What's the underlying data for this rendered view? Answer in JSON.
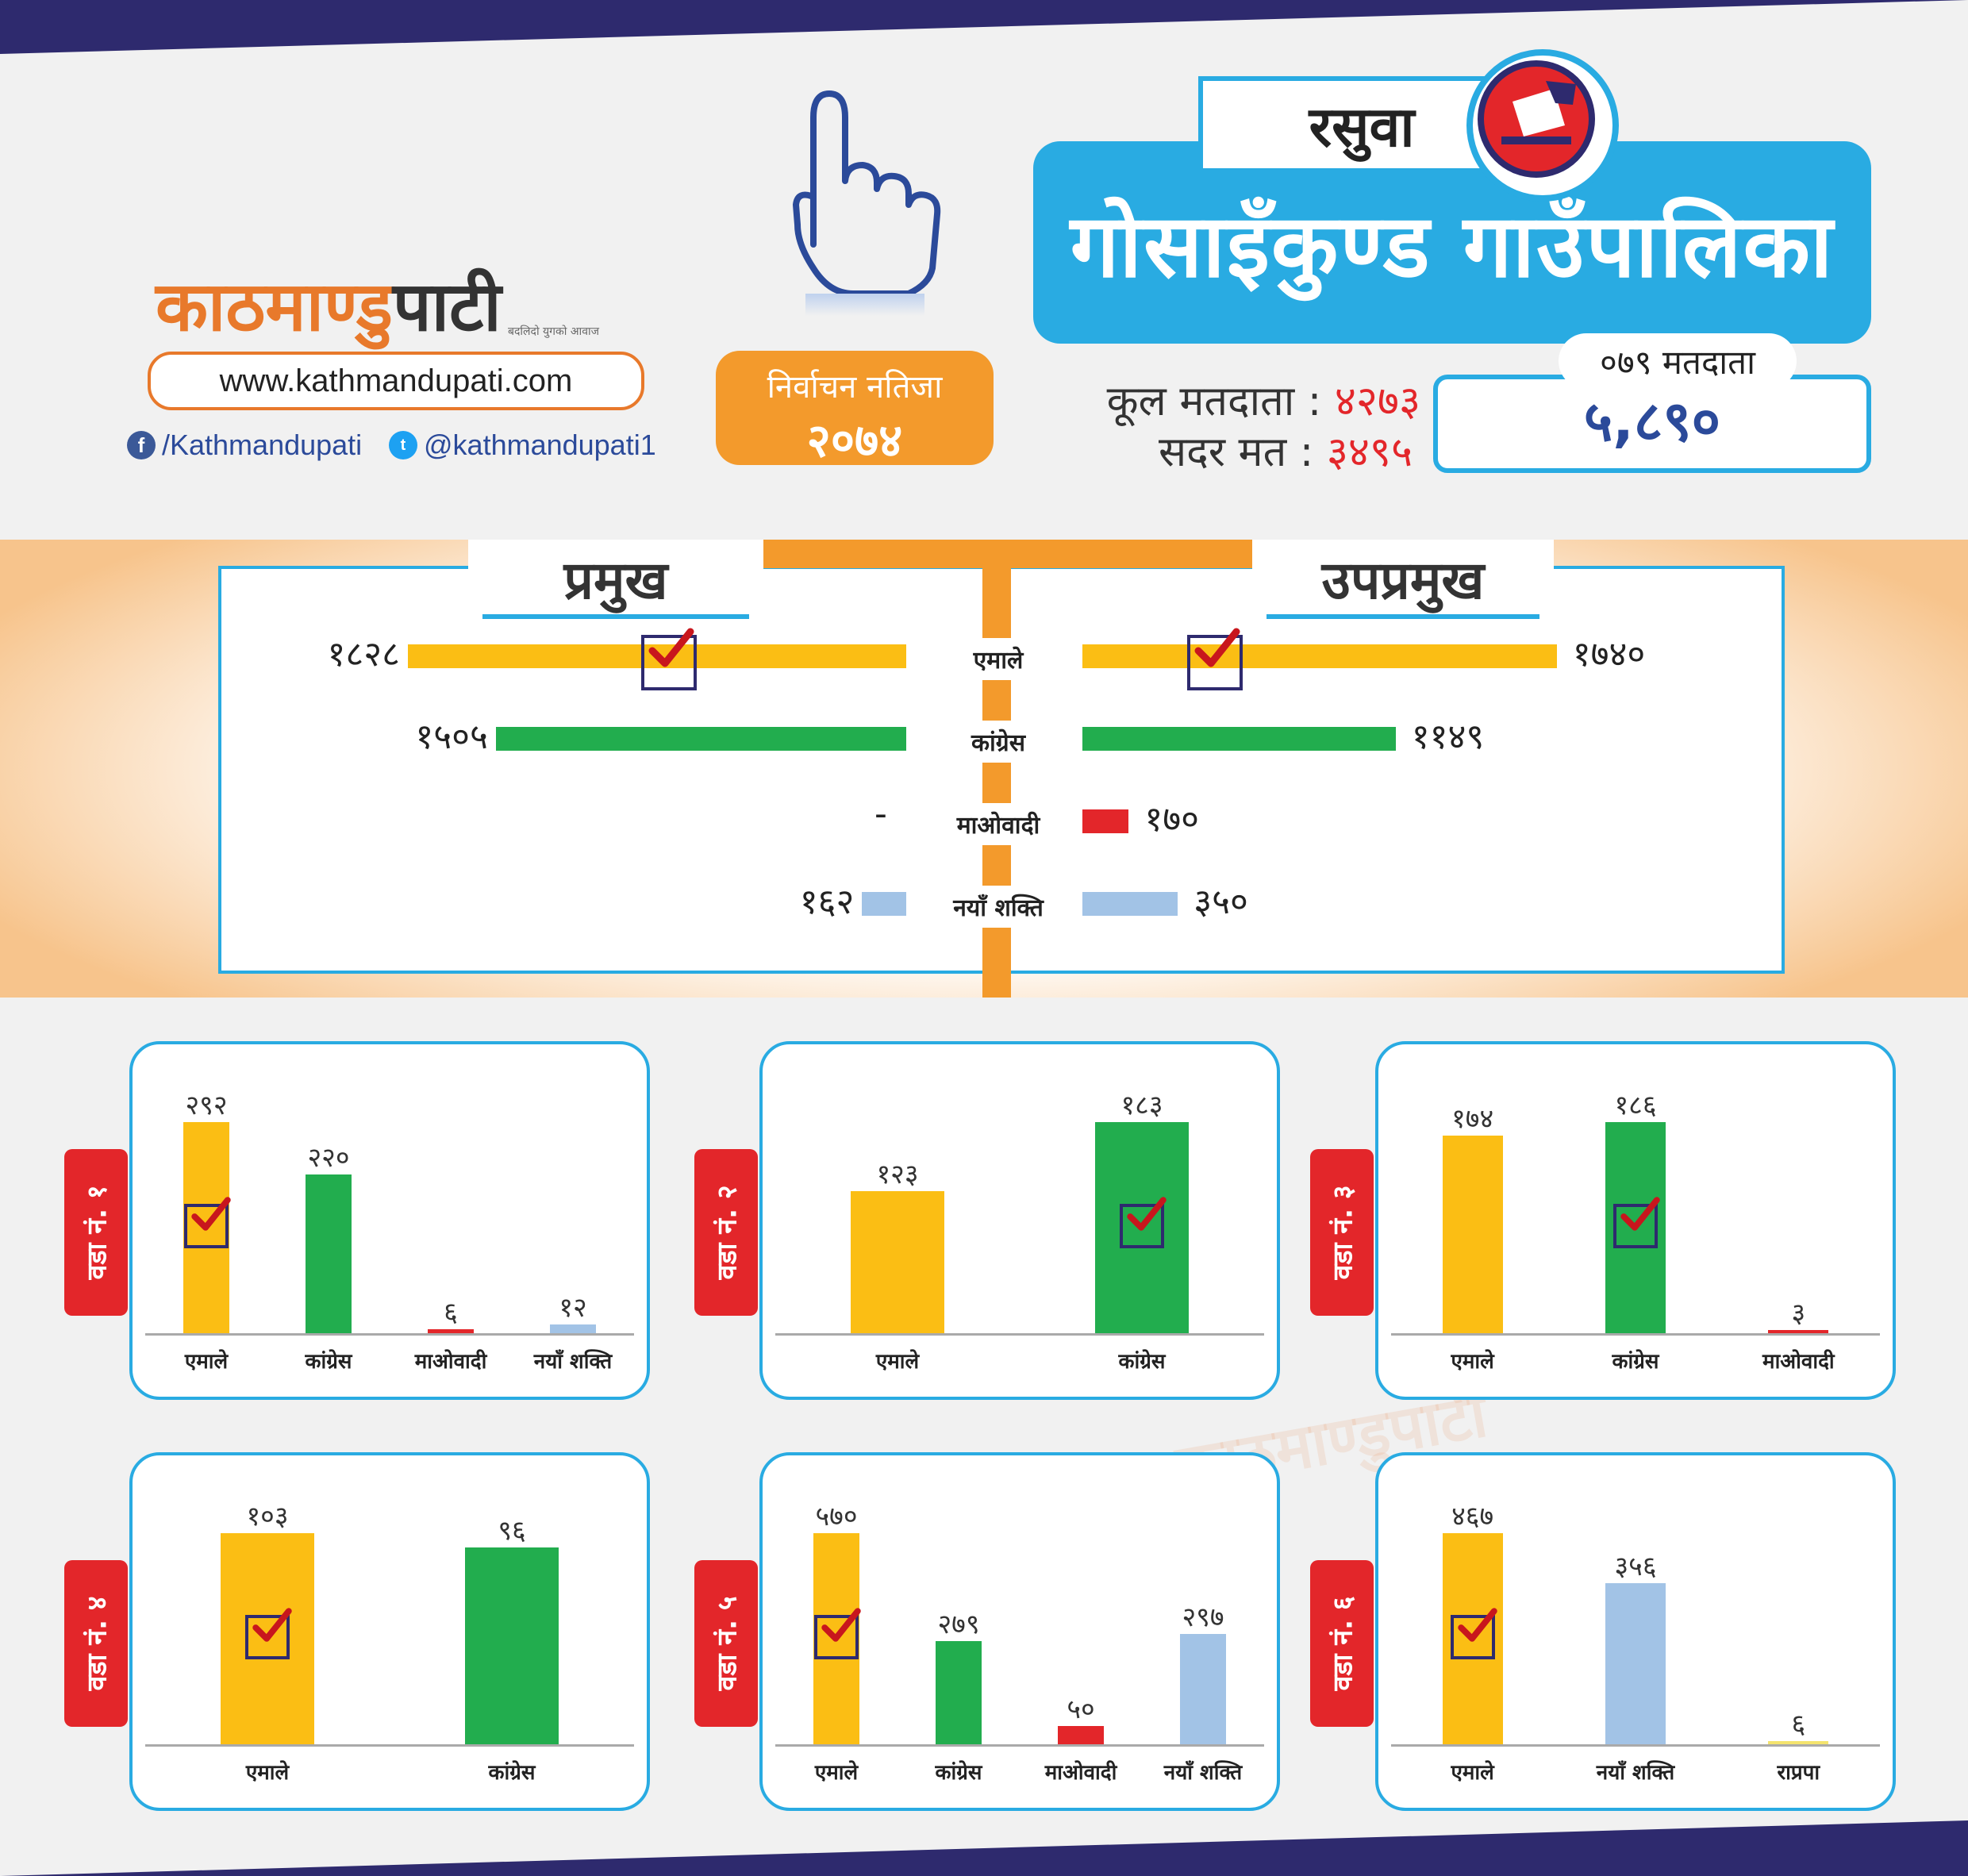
{
  "brand": {
    "logo_main": "काठमाण्डु",
    "logo_dark": "पाटी",
    "tagline": "बदलिदो युगको आवाज",
    "url": "www.kathmandupati.com",
    "facebook": "/Kathmandupati",
    "twitter": "@kathmandupati1",
    "facebook_icon": "facebook-icon",
    "twitter_icon": "twitter-icon"
  },
  "result_badge": {
    "line1": "निर्वाचन नतिजा",
    "line2": "२०७४"
  },
  "header": {
    "district": "रसुवा",
    "municipality": "गोसाइँकुण्ड गाउँपालिका",
    "total_voters_label": "कूल मतदाता :",
    "total_voters": "४२७३",
    "valid_votes_label": "सदर मत :",
    "valid_votes": "३४९५",
    "voters_079_label": "०७९ मतदाता",
    "voters_079": "५,८९०"
  },
  "colors": {
    "uml": "#fbbe14",
    "congress": "#22ad4e",
    "maoist": "#e3262a",
    "naya_shakti": "#a2c3e6",
    "rpp": "#f4e36e",
    "accent": "#29abe2",
    "orange": "#f39a2c"
  },
  "chart_data": [
    {
      "type": "bar",
      "title": "प्रमुख",
      "categories": [
        "एमाले",
        "कांग्रेस",
        "माओवादी",
        "नयाँ शक्ति"
      ],
      "values": [
        1828,
        1505,
        null,
        162
      ],
      "labels": [
        "१८२८",
        "१५०५",
        "-",
        "१६२"
      ],
      "winner": "एमाले"
    },
    {
      "type": "bar",
      "title": "उपप्रमुख",
      "categories": [
        "एमाले",
        "कांग्रेस",
        "माओवादी",
        "नयाँ शक्ति"
      ],
      "values": [
        1740,
        1149,
        170,
        350
      ],
      "labels": [
        "१७४०",
        "११४९",
        "१७०",
        "३५०"
      ],
      "winner": "एमाले"
    },
    {
      "type": "bar",
      "title": "वडा नं. १",
      "categories": [
        "एमाले",
        "कांग्रेस",
        "माओवादी",
        "नयाँ शक्ति"
      ],
      "values": [
        292,
        220,
        6,
        12
      ],
      "labels": [
        "२९२",
        "२२०",
        "६",
        "१२"
      ],
      "winner": "एमाले"
    },
    {
      "type": "bar",
      "title": "वडा नं. २",
      "categories": [
        "एमाले",
        "कांग्रेस"
      ],
      "values": [
        123,
        183
      ],
      "labels": [
        "१२३",
        "१८३"
      ],
      "winner": "कांग्रेस"
    },
    {
      "type": "bar",
      "title": "वडा नं. ३",
      "categories": [
        "एमाले",
        "कांग्रेस",
        "माओवादी"
      ],
      "values": [
        174,
        186,
        3
      ],
      "labels": [
        "१७४",
        "१८६",
        "३"
      ],
      "winner": "कांग्रेस"
    },
    {
      "type": "bar",
      "title": "वडा नं. ४",
      "categories": [
        "एमाले",
        "कांग्रेस"
      ],
      "values": [
        103,
        96
      ],
      "labels": [
        "१०३",
        "९६"
      ],
      "winner": "एमाले"
    },
    {
      "type": "bar",
      "title": "वडा नं. ५",
      "categories": [
        "एमाले",
        "कांग्रेस",
        "माओवादी",
        "नयाँ शक्ति"
      ],
      "values": [
        570,
        279,
        50,
        297
      ],
      "labels": [
        "५७०",
        "२७९",
        "५०",
        "२९७"
      ],
      "winner": "एमाले"
    },
    {
      "type": "bar",
      "title": "वडा नं. ६",
      "categories": [
        "एमाले",
        "नयाँ शक्ति",
        "राप्रपा"
      ],
      "values": [
        467,
        356,
        6
      ],
      "labels": [
        "४६७",
        "३५६",
        "६"
      ],
      "winner": "एमाले"
    }
  ]
}
